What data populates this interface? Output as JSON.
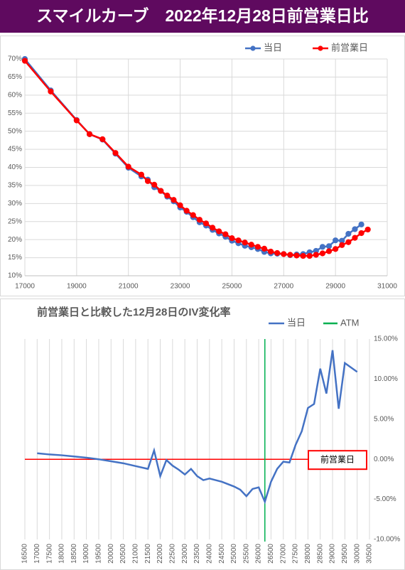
{
  "page_title": "スマイルカーブ　2022年12月28日前営業日比",
  "chart_data": [
    {
      "type": "line",
      "legend": "top-right",
      "grid": "both",
      "markers": true,
      "xlim": [
        17000,
        31000
      ],
      "xticks": [
        17000,
        19000,
        21000,
        23000,
        25000,
        27000,
        29000,
        31000
      ],
      "ylim": [
        10,
        70
      ],
      "yticks": [
        {
          "value": 10,
          "label": "10%"
        },
        {
          "value": 15,
          "label": "15%"
        },
        {
          "value": 20,
          "label": "20%"
        },
        {
          "value": 25,
          "label": "25%"
        },
        {
          "value": 30,
          "label": "30%"
        },
        {
          "value": 35,
          "label": "35%"
        },
        {
          "value": 40,
          "label": "40%"
        },
        {
          "value": 45,
          "label": "45%"
        },
        {
          "value": 50,
          "label": "50%"
        },
        {
          "value": 55,
          "label": "55%"
        },
        {
          "value": 60,
          "label": "60%"
        },
        {
          "value": 65,
          "label": "65%"
        },
        {
          "value": 70,
          "label": "70%"
        }
      ],
      "series": [
        {
          "name": "当日",
          "color": "#4472c4",
          "x": [
            17000,
            18000,
            19000,
            19500,
            20000,
            20500,
            21000,
            21500,
            21750,
            22000,
            22250,
            22500,
            22750,
            23000,
            23250,
            23500,
            23750,
            24000,
            24250,
            24500,
            24750,
            25000,
            25250,
            25500,
            25750,
            26000,
            26250,
            26500,
            26750,
            27000,
            27250,
            27500,
            27750,
            28000,
            28250,
            28500,
            28750,
            29000,
            29250,
            29500,
            29750,
            30000
          ],
          "values": [
            70.0,
            61.3,
            53.1,
            49.2,
            47.7,
            43.8,
            39.9,
            37.5,
            36.6,
            34.5,
            33.5,
            31.9,
            30.6,
            28.9,
            27.7,
            26.2,
            24.8,
            23.9,
            22.7,
            21.7,
            20.8,
            19.7,
            19.0,
            18.3,
            17.9,
            17.4,
            16.6,
            16.2,
            16.1,
            16.0,
            15.7,
            15.9,
            16.0,
            16.5,
            16.9,
            18.0,
            18.2,
            19.8,
            19.7,
            21.6,
            22.9,
            24.2
          ]
        },
        {
          "name": "前営業日",
          "color": "#ff0000",
          "x": [
            17000,
            18000,
            19000,
            19500,
            20000,
            20500,
            21000,
            21500,
            21750,
            22000,
            22250,
            22500,
            22750,
            23000,
            23250,
            23500,
            23750,
            24000,
            24250,
            24500,
            24750,
            25000,
            25250,
            25500,
            25750,
            26000,
            26250,
            26500,
            26750,
            27000,
            27250,
            27500,
            27750,
            28000,
            28250,
            28500,
            28750,
            29000,
            29250,
            29500,
            29750,
            30000,
            30250
          ],
          "values": [
            69.5,
            61.0,
            53.0,
            49.2,
            47.8,
            44.0,
            40.2,
            38.0,
            36.2,
            35.2,
            33.5,
            32.2,
            31.0,
            29.5,
            28.0,
            26.8,
            25.5,
            24.5,
            23.3,
            22.3,
            21.5,
            20.4,
            19.8,
            19.2,
            18.6,
            18.0,
            17.5,
            16.7,
            16.3,
            16.0,
            15.8,
            15.6,
            15.5,
            15.5,
            15.8,
            16.2,
            16.8,
            17.4,
            18.5,
            19.3,
            20.5,
            21.8,
            22.8
          ]
        }
      ]
    },
    {
      "type": "line",
      "title": "前営業日と比較した12月28日のIV変化率",
      "legend": "top-right",
      "grid": "x",
      "markers": false,
      "y_axis_side": "right",
      "xlim": [
        16500,
        30500
      ],
      "xticks": [
        16500,
        17000,
        17500,
        18000,
        18500,
        19000,
        19500,
        20000,
        20500,
        21000,
        21500,
        22000,
        22500,
        23000,
        23500,
        24000,
        24500,
        25000,
        25500,
        26000,
        26500,
        27000,
        27500,
        28000,
        28500,
        29000,
        29500,
        30000,
        30500
      ],
      "ylim": [
        -10,
        15
      ],
      "yticks": [
        {
          "value": 15,
          "label": "15.00%"
        },
        {
          "value": 10,
          "label": "10.00%"
        },
        {
          "value": 5,
          "label": "5.00%"
        },
        {
          "value": 0,
          "label": "0.00%"
        },
        {
          "value": -5,
          "label": "-5.00%"
        },
        {
          "value": -10,
          "label": "-10.00%"
        }
      ],
      "series": [
        {
          "name": "当日",
          "color": "#4472c4",
          "x": [
            17000,
            17500,
            18000,
            18500,
            19000,
            19500,
            20000,
            20500,
            21000,
            21500,
            21750,
            22000,
            22250,
            22500,
            22750,
            23000,
            23250,
            23500,
            23750,
            24000,
            24250,
            24500,
            24750,
            25000,
            25250,
            25500,
            25750,
            26000,
            26250,
            26500,
            26750,
            27000,
            27250,
            27500,
            27750,
            28000,
            28250,
            28500,
            28750,
            29000,
            29250,
            29500,
            30000
          ],
          "values": [
            0.75,
            0.6,
            0.5,
            0.35,
            0.2,
            0.0,
            -0.25,
            -0.5,
            -0.85,
            -1.2,
            1.1,
            -2.1,
            -0.1,
            -0.8,
            -1.3,
            -1.9,
            -1.2,
            -2.1,
            -2.6,
            -2.4,
            -2.6,
            -2.8,
            -3.1,
            -3.4,
            -3.8,
            -4.6,
            -3.7,
            -3.5,
            -5.3,
            -2.8,
            -1.2,
            -0.3,
            -0.4,
            1.8,
            3.5,
            6.4,
            6.9,
            11.3,
            8.2,
            13.6,
            6.3,
            12.0,
            10.9
          ]
        }
      ],
      "atm": {
        "name": "ATM",
        "color": "#00b050",
        "x": 26250
      },
      "reference_line": {
        "label": "前営業日",
        "color": "#ff0000",
        "value": 0
      }
    }
  ]
}
